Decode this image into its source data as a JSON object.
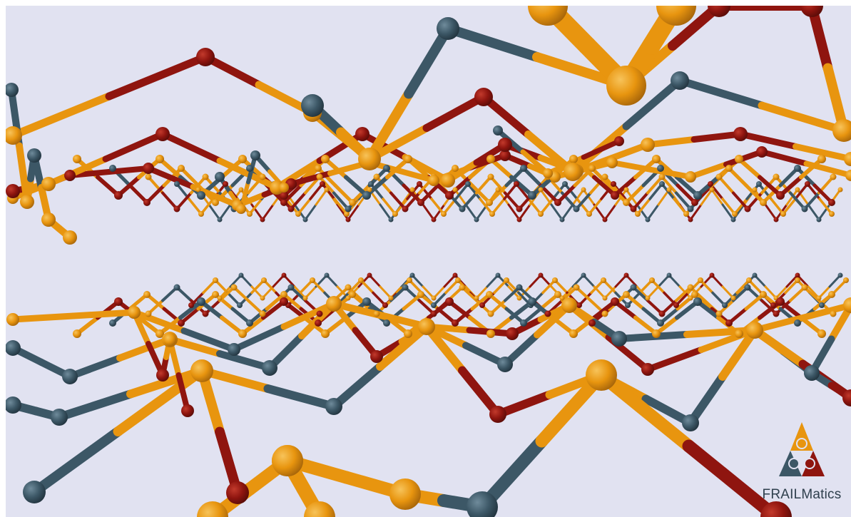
{
  "scene": {
    "description_kind": "3d-molecular-lattice-render",
    "colors": {
      "background": "#e1e2f1",
      "orange": "#e8950f",
      "dark_red": "#8f150f",
      "slate": "#3c5766"
    }
  },
  "logo": {
    "name": "FRAILMatics",
    "colors": {
      "orange": "#e8950f",
      "dark_red": "#8f150f",
      "slate": "#3c5766"
    }
  }
}
